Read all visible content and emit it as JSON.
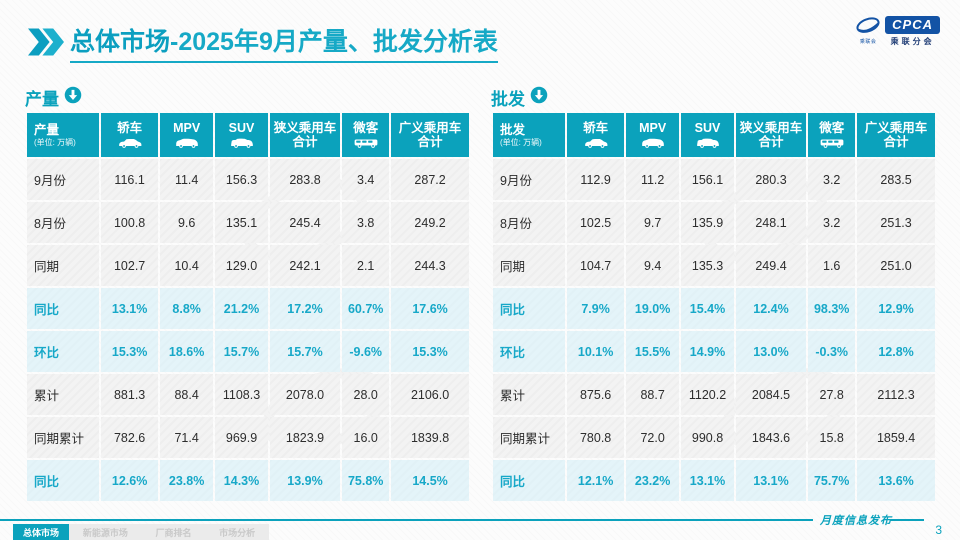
{
  "title": {
    "section": "总体市场",
    "rest": "-2025年9月产量、批发分析表"
  },
  "logo": {
    "badge": "CPCA",
    "subtitle": "乘联分会",
    "mark_caption": "乘联会"
  },
  "sections": [
    {
      "name": "产量",
      "unit": "(单位: 万辆)",
      "columns": [
        {
          "label": "轿车",
          "icon": "sedan-icon"
        },
        {
          "label": "MPV",
          "icon": "mpv-icon"
        },
        {
          "label": "SUV",
          "icon": "suv-icon"
        },
        {
          "label": "狭义乘用车",
          "label2": "合计"
        },
        {
          "label": "微客",
          "icon": "microvan-icon"
        },
        {
          "label": "广义乘用车",
          "label2": "合计"
        }
      ],
      "rows": [
        {
          "label": "9月份",
          "type": "normal",
          "values": [
            "116.1",
            "11.4",
            "156.3",
            "283.8",
            "3.4",
            "287.2"
          ]
        },
        {
          "label": "8月份",
          "type": "normal",
          "values": [
            "100.8",
            "9.6",
            "135.1",
            "245.4",
            "3.8",
            "249.2"
          ]
        },
        {
          "label": "同期",
          "type": "normal",
          "values": [
            "102.7",
            "10.4",
            "129.0",
            "242.1",
            "2.1",
            "244.3"
          ]
        },
        {
          "label": "同比",
          "type": "percent",
          "values": [
            "13.1%",
            "8.8%",
            "21.2%",
            "17.2%",
            "60.7%",
            "17.6%"
          ]
        },
        {
          "label": "环比",
          "type": "percent",
          "values": [
            "15.3%",
            "18.6%",
            "15.7%",
            "15.7%",
            "-9.6%",
            "15.3%"
          ]
        },
        {
          "label": "累计",
          "type": "normal",
          "values": [
            "881.3",
            "88.4",
            "1108.3",
            "2078.0",
            "28.0",
            "2106.0"
          ]
        },
        {
          "label": "同期累计",
          "type": "normal",
          "values": [
            "782.6",
            "71.4",
            "969.9",
            "1823.9",
            "16.0",
            "1839.8"
          ]
        },
        {
          "label": "同比",
          "type": "percent",
          "values": [
            "12.6%",
            "23.8%",
            "14.3%",
            "13.9%",
            "75.8%",
            "14.5%"
          ]
        }
      ]
    },
    {
      "name": "批发",
      "unit": "(单位: 万辆)",
      "columns": [
        {
          "label": "轿车",
          "icon": "sedan-icon"
        },
        {
          "label": "MPV",
          "icon": "mpv-icon"
        },
        {
          "label": "SUV",
          "icon": "suv-icon"
        },
        {
          "label": "狭义乘用车",
          "label2": "合计"
        },
        {
          "label": "微客",
          "icon": "microvan-icon"
        },
        {
          "label": "广义乘用车",
          "label2": "合计"
        }
      ],
      "rows": [
        {
          "label": "9月份",
          "type": "normal",
          "values": [
            "112.9",
            "11.2",
            "156.1",
            "280.3",
            "3.2",
            "283.5"
          ]
        },
        {
          "label": "8月份",
          "type": "normal",
          "values": [
            "102.5",
            "9.7",
            "135.9",
            "248.1",
            "3.2",
            "251.3"
          ]
        },
        {
          "label": "同期",
          "type": "normal",
          "values": [
            "104.7",
            "9.4",
            "135.3",
            "249.4",
            "1.6",
            "251.0"
          ]
        },
        {
          "label": "同比",
          "type": "percent",
          "values": [
            "7.9%",
            "19.0%",
            "15.4%",
            "12.4%",
            "98.3%",
            "12.9%"
          ]
        },
        {
          "label": "环比",
          "type": "percent",
          "values": [
            "10.1%",
            "15.5%",
            "14.9%",
            "13.0%",
            "-0.3%",
            "12.8%"
          ]
        },
        {
          "label": "累计",
          "type": "normal",
          "values": [
            "875.6",
            "88.7",
            "1120.2",
            "2084.5",
            "27.8",
            "2112.3"
          ]
        },
        {
          "label": "同期累计",
          "type": "normal",
          "values": [
            "780.8",
            "72.0",
            "990.8",
            "1843.6",
            "15.8",
            "1859.4"
          ]
        },
        {
          "label": "同比",
          "type": "percent",
          "values": [
            "12.1%",
            "23.2%",
            "13.1%",
            "13.1%",
            "75.7%",
            "13.6%"
          ]
        }
      ]
    }
  ],
  "footer": {
    "tabs": [
      {
        "label": "总体市场",
        "active": true
      },
      {
        "label": "新能源市场",
        "active": false
      },
      {
        "label": "厂商排名",
        "active": false
      },
      {
        "label": "市场分析",
        "active": false
      }
    ],
    "caption": "月度信息发布",
    "page_number": "3"
  },
  "colors": {
    "accent": "#0ba2bc",
    "title_color": "#16a9c6",
    "title_bold_color": "#0c9fc0",
    "percent_text": "#17a8c8",
    "percent_row_bg": "#e4f4f9",
    "row_bg": "#f3f3f3",
    "logo_blue": "#1353a5"
  }
}
